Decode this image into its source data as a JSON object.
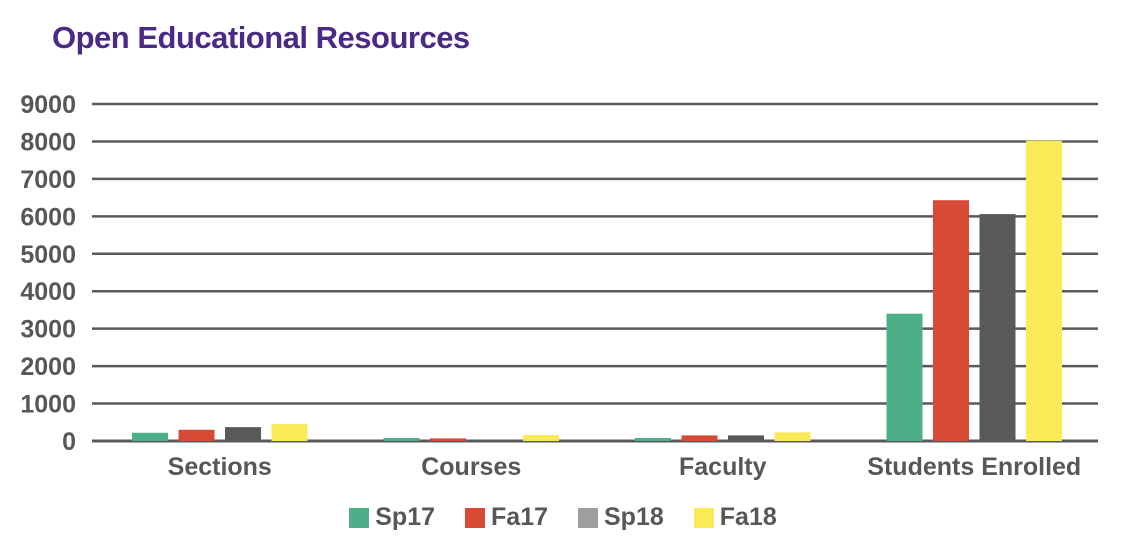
{
  "chart_data": {
    "type": "bar",
    "title": "Open Educational Resources",
    "categories": [
      "Sections",
      "Courses",
      "Faculty",
      "Students Enrolled"
    ],
    "series": [
      {
        "name": "Sp17",
        "color": "#4caf87",
        "values": [
          220,
          80,
          80,
          3400
        ]
      },
      {
        "name": "Fa17",
        "color": "#d64a36",
        "values": [
          300,
          70,
          150,
          6430
        ]
      },
      {
        "name": "Sp18",
        "color": "#58595b",
        "values": [
          370,
          0,
          150,
          6060
        ]
      },
      {
        "name": "Fa18",
        "color": "#fbe955",
        "values": [
          450,
          160,
          230,
          8020
        ]
      }
    ],
    "ylim": [
      0,
      9000
    ],
    "yticks": [
      "0",
      "1000",
      "2000",
      "3000",
      "4000",
      "5000",
      "6000",
      "7000",
      "8000",
      "9000"
    ],
    "legend_entries": [
      {
        "label": "Sp17",
        "color": "#4caf87"
      },
      {
        "label": "Fa17",
        "color": "#d64a36"
      },
      {
        "label": "Sp18",
        "color": "#9e9e9e"
      },
      {
        "label": "Fa18",
        "color": "#fbe955"
      }
    ],
    "grid": true,
    "legend_position": "bottom",
    "text_color": "#555759",
    "title_color": "#4b2a86"
  }
}
